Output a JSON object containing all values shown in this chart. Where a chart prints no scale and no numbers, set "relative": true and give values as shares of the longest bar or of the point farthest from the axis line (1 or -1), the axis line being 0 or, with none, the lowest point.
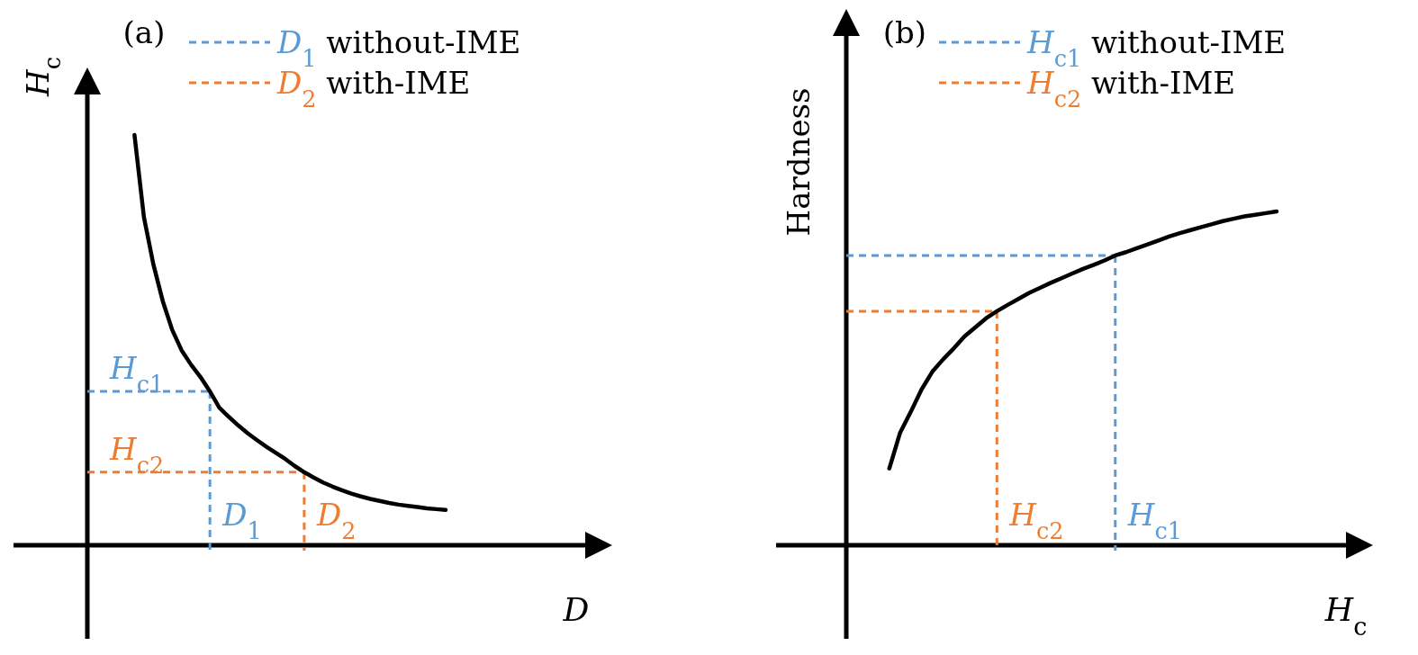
{
  "chart_data": [
    {
      "type": "line",
      "title": "(a)",
      "xlabel": "D",
      "ylabel": "H$_{c}$",
      "relative": true,
      "legend": "top",
      "categories": [
        null,
        null,
        null,
        null,
        null,
        null,
        null,
        null,
        null,
        null,
        null,
        null,
        null,
        null,
        null,
        null,
        null,
        null,
        null,
        null,
        null,
        null,
        null,
        null,
        null,
        null,
        null,
        null,
        null,
        null,
        null,
        null,
        null,
        null,
        null,
        null,
        null,
        null,
        null
      ],
      "series": [
        {
          "name": "D$_{1}$ without-IME",
          "color": "#5b9bd5",
          "line_style": "dashed",
          "values": [
            0.375,
            0.375,
            0.375,
            0.375,
            0.375,
            0.375,
            0.375,
            0.375,
            0.375,
            0.375,
            0.375,
            0.375,
            0.375,
            0.375,
            null,
            null,
            null,
            null,
            null,
            null,
            null,
            null,
            null,
            null,
            null,
            null,
            null,
            null,
            null,
            null,
            null,
            null,
            null,
            null,
            null,
            null,
            null,
            null,
            null
          ]
        },
        {
          "name": "D$_{2}$ with-IME",
          "color": "#ed7d31",
          "line_style": "dashed",
          "values": [
            0.178,
            0.178,
            0.178,
            0.178,
            0.178,
            0.178,
            0.178,
            0.178,
            0.178,
            0.178,
            0.178,
            0.178,
            0.178,
            0.178,
            0.178,
            0.178,
            0.178,
            0.178,
            0.178,
            0.178,
            0.178,
            0.178,
            0.178,
            0.178,
            null,
            null,
            null,
            null,
            null,
            null,
            null,
            null,
            null,
            null,
            null,
            null,
            null,
            null,
            null
          ]
        },
        {
          "color": "#000000",
          "line_style": "solid",
          "values": [
            null,
            null,
            null,
            null,
            null,
            1,
            0.8,
            0.685,
            0.595,
            0.525,
            0.475,
            0.44,
            0.41,
            0.375,
            0.335,
            0.313,
            0.292,
            0.273,
            0.256,
            0.24,
            0.225,
            0.21,
            0.193,
            0.178,
            0.165,
            0.153,
            0.143,
            0.134,
            0.126,
            0.119,
            0.113,
            0.108,
            0.103,
            0.099,
            0.096,
            0.093,
            0.09,
            0.088,
            0.086
          ]
        }
      ],
      "annotations": [
        {
          "text": "H$_{c1}$",
          "y": 0.375
        },
        {
          "text": "H$_{c2}$",
          "y": 0.178
        },
        "D$_{1}$",
        "D$_{2}$"
      ]
    },
    {
      "type": "line",
      "title": "(b)",
      "xlabel": "H$_{c}$",
      "ylabel": "Hardness",
      "relative": true,
      "legend": "top",
      "categories": [
        null,
        null,
        null,
        null,
        null,
        null,
        null,
        null,
        null,
        null,
        null,
        null,
        null,
        null,
        null,
        null,
        null,
        null,
        null,
        null,
        null,
        null,
        null,
        null,
        null,
        null,
        null,
        null,
        null,
        null,
        null,
        null,
        null,
        null,
        null,
        null,
        null,
        null,
        null,
        null,
        null
      ],
      "series": [
        {
          "name": "H$_{c1}$ without-IME",
          "color": "#5b9bd5",
          "line_style": "dashed",
          "values": [
            0.868,
            0.868,
            0.868,
            0.868,
            0.868,
            0.868,
            0.868,
            0.868,
            0.868,
            0.868,
            0.868,
            0.868,
            0.868,
            0.868,
            0.868,
            0.868,
            0.868,
            0.868,
            0.868,
            0.868,
            0.868,
            0.868,
            0.868,
            0.868,
            0.868,
            0.868,
            null,
            null,
            null,
            null,
            null,
            null,
            null,
            null,
            null,
            null,
            null,
            null,
            null,
            null,
            null
          ]
        },
        {
          "name": "H$_{c2}$ with-IME",
          "color": "#ed7d31",
          "line_style": "dashed",
          "values": [
            0.701,
            0.701,
            0.701,
            0.701,
            0.701,
            0.701,
            0.701,
            0.701,
            0.701,
            0.701,
            0.701,
            0.701,
            0.701,
            0.701,
            0.701,
            null,
            null,
            null,
            null,
            null,
            null,
            null,
            null,
            null,
            null,
            null,
            null,
            null,
            null,
            null,
            null,
            null,
            null,
            null,
            null,
            null,
            null,
            null,
            null,
            null,
            null
          ]
        },
        {
          "color": "#000000",
          "line_style": "solid",
          "values": [
            null,
            null,
            null,
            null,
            0.23,
            0.337,
            0.4,
            0.467,
            0.52,
            0.557,
            0.59,
            0.626,
            0.653,
            0.68,
            0.701,
            0.72,
            0.738,
            0.756,
            0.771,
            0.786,
            0.8,
            0.814,
            0.828,
            0.84,
            0.853,
            0.868,
            0.878,
            0.89,
            0.901,
            0.913,
            0.925,
            0.935,
            0.944,
            0.953,
            0.962,
            0.971,
            0.978,
            0.985,
            0.99,
            0.995,
            1
          ]
        }
      ],
      "annotations": [
        "H$_{c1}$",
        "H$_{c2}$"
      ]
    }
  ]
}
